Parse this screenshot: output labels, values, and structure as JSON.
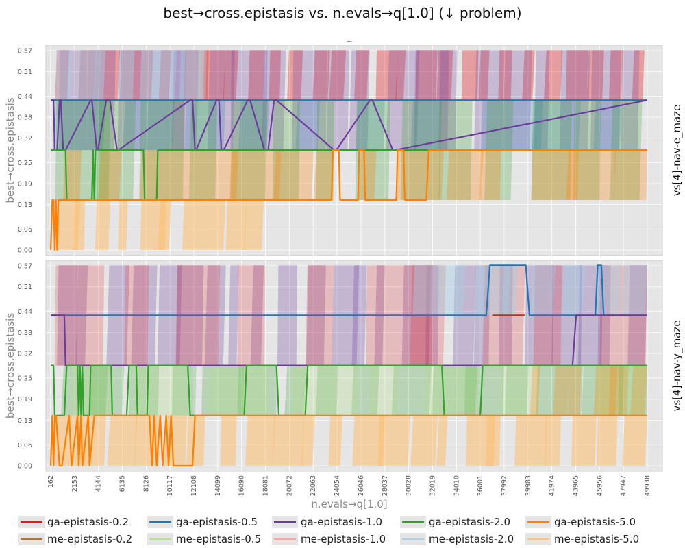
{
  "title": "best→cross.epistasis vs. n.evals→q[1.0] (↓ problem)",
  "subtitle": "_",
  "chart_data": {
    "type": "line",
    "xlabel": "n.evals→q[1.0]",
    "ylabel": "best→cross.epistasis",
    "x_ticks": [
      "162",
      "2153",
      "4144",
      "6135",
      "8126",
      "10117",
      "12108",
      "14099",
      "16090",
      "18081",
      "20072",
      "22063",
      "24054",
      "26046",
      "28037",
      "30028",
      "32019",
      "34010",
      "36001",
      "37992",
      "39983",
      "41974",
      "43965",
      "45956",
      "47947",
      "49938"
    ],
    "y_ticks": [
      "0.00",
      "0.06",
      "0.13",
      "0.19",
      "0.25",
      "0.32",
      "0.38",
      "0.44",
      "0.51",
      "0.57"
    ],
    "xlim": [
      162,
      49938
    ],
    "ylim": [
      0.0,
      0.57
    ],
    "grid": true,
    "legend_position": "bottom",
    "series_names": [
      "ga-epistasis-0.2",
      "ga-epistasis-0.5",
      "ga-epistasis-1.0",
      "ga-epistasis-2.0",
      "ga-epistasis-5.0",
      "me-epistasis-0.2",
      "me-epistasis-0.5",
      "me-epistasis-1.0",
      "me-epistasis-2.0",
      "me-epistasis-5.0"
    ],
    "series_colors": [
      "#e41a1c",
      "#1f78b4",
      "#6a3d9a",
      "#33a02c",
      "#ff7f00",
      "#a6611a",
      "#b2df8a",
      "#fb9a99",
      "#a6cee3",
      "#fdbf6f"
    ],
    "facets": [
      {
        "label": "vs[4]-nav-e_maze",
        "series": [
          {
            "name": "ga-epistasis-0.5",
            "x": [
              162,
              49938
            ],
            "y": [
              0.4286,
              0.4286
            ]
          },
          {
            "name": "ga-epistasis-1.0",
            "x": [
              162,
              400,
              500,
              700,
              900,
              1000,
              1200,
              1400,
              3500,
              3600,
              4000,
              4100,
              4800,
              5100,
              5700,
              5800,
              11800,
              12000,
              12200,
              12300,
              14000,
              14200,
              14400,
              14600,
              16600,
              16800,
              18000,
              18300,
              18800,
              19000,
              23800,
              24000,
              26800,
              27000,
              28700,
              28900,
              49938
            ],
            "y": [
              0.4286,
              0.4286,
              0.2857,
              0.2857,
              0.4286,
              0.4286,
              0.2857,
              0.2857,
              0.4286,
              0.4286,
              0.2857,
              0.2857,
              0.4286,
              0.4286,
              0.2857,
              0.2857,
              0.4286,
              0.4286,
              0.2857,
              0.2857,
              0.4286,
              0.4286,
              0.2857,
              0.2857,
              0.4286,
              0.4286,
              0.2857,
              0.2857,
              0.4286,
              0.4286,
              0.2857,
              0.2857,
              0.4286,
              0.4286,
              0.2857,
              0.2857,
              0.4286
            ]
          },
          {
            "name": "ga-epistasis-2.0",
            "x": [
              162,
              1400,
              1500,
              3600,
              3700,
              3800,
              3900,
              7900,
              8000,
              9000,
              9100,
              49938
            ],
            "y": [
              0.2857,
              0.2857,
              0.1429,
              0.1429,
              0.2857,
              0.1429,
              0.2857,
              0.2857,
              0.1429,
              0.1429,
              0.2857,
              0.2857
            ]
          },
          {
            "name": "ga-epistasis-5.0",
            "x": [
              162,
              300,
              400,
              500,
              600,
              700,
              800,
              900,
              23600,
              23700,
              24200,
              24300,
              25800,
              25900,
              26300,
              26400,
              29000,
              29100,
              29600,
              29700,
              31500,
              31700,
              33200,
              33400,
              49938
            ],
            "y": [
              0.0,
              0.1429,
              0.1429,
              0.0,
              0.1429,
              0.0,
              0.1429,
              0.1429,
              0.1429,
              0.2857,
              0.2857,
              0.1429,
              0.1429,
              0.2857,
              0.2857,
              0.1429,
              0.1429,
              0.2857,
              0.2857,
              0.1429,
              0.1429,
              0.2857,
              0.2857,
              0.2857,
              0.2857
            ]
          }
        ]
      },
      {
        "label": "vs[4]-nav-y_maze",
        "series": [
          {
            "name": "ga-epistasis-0.5",
            "x": [
              162,
              36500,
              36800,
              39800,
              40100,
              45600,
              45800,
              46100,
              46300,
              49938
            ],
            "y": [
              0.4286,
              0.4286,
              0.5714,
              0.5714,
              0.4286,
              0.4286,
              0.5714,
              0.5714,
              0.4286,
              0.4286
            ]
          },
          {
            "name": "ga-epistasis-0.2",
            "x": [
              37000,
              39700
            ],
            "y": [
              0.4286,
              0.4286
            ]
          },
          {
            "name": "ga-epistasis-1.0",
            "x": [
              162,
              1300,
              1400,
              43700,
              44000,
              49938
            ],
            "y": [
              0.4286,
              0.4286,
              0.2857,
              0.2857,
              0.4286,
              0.4286
            ]
          },
          {
            "name": "ga-epistasis-2.0",
            "x": [
              162,
              400,
              500,
              1300,
              1500,
              2400,
              2500,
              2600,
              2700,
              2800,
              2900,
              3400,
              3500,
              5200,
              5300,
              6500,
              6700,
              7300,
              7400,
              8200,
              8300,
              11600,
              11800,
              16300,
              16500,
              19000,
              19200,
              21400,
              21600,
              32800,
              33000,
              36000,
              36200,
              49938
            ],
            "y": [
              0.2857,
              0.2857,
              0.1429,
              0.1429,
              0.2857,
              0.2857,
              0.1429,
              0.2857,
              0.1429,
              0.2857,
              0.1429,
              0.1429,
              0.2857,
              0.2857,
              0.1429,
              0.1429,
              0.2857,
              0.2857,
              0.1429,
              0.1429,
              0.2857,
              0.2857,
              0.1429,
              0.1429,
              0.2857,
              0.2857,
              0.1429,
              0.1429,
              0.2857,
              0.2857,
              0.1429,
              0.1429,
              0.2857,
              0.2857
            ]
          },
          {
            "name": "ga-epistasis-5.0",
            "x": [
              162,
              300,
              400,
              500,
              600,
              900,
              1100,
              1700,
              1900,
              2400,
              2500,
              2700,
              2800,
              3300,
              3400,
              3800,
              3900,
              8400,
              8600,
              8800,
              9000,
              9300,
              9500,
              9800,
              10000,
              10200,
              10400,
              10600,
              10700,
              12000,
              12200,
              49938
            ],
            "y": [
              0.0,
              0.1429,
              0.0,
              0.1429,
              0.1429,
              0.0,
              0.0,
              0.1429,
              0.0,
              0.1429,
              0.0,
              0.1429,
              0.0,
              0.1429,
              0.0,
              0.1429,
              0.1429,
              0.1429,
              0.0,
              0.1429,
              0.0,
              0.1429,
              0.0,
              0.1429,
              0.0,
              0.1429,
              0.0,
              0.0,
              0.0,
              0.0,
              0.1429,
              0.1429
            ]
          }
        ]
      }
    ]
  }
}
